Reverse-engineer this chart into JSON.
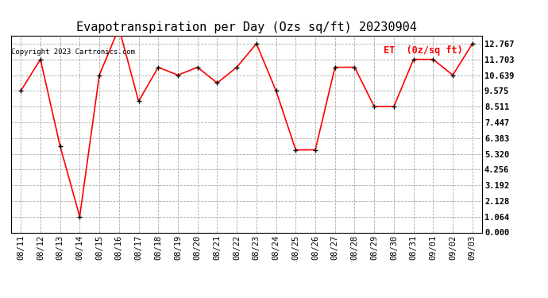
{
  "title": "Evapotranspiration per Day (Ozs sq/ft) 20230904",
  "copyright_text": "Copyright 2023 Cartronics.com",
  "legend_label": "ET  (0z/sq ft)",
  "dates": [
    "08/11",
    "08/12",
    "08/13",
    "08/14",
    "08/15",
    "08/16",
    "08/17",
    "08/18",
    "08/19",
    "08/20",
    "08/21",
    "08/22",
    "08/23",
    "08/24",
    "08/25",
    "08/26",
    "08/27",
    "08/28",
    "08/29",
    "08/30",
    "08/31",
    "09/01",
    "09/02",
    "09/03"
  ],
  "values": [
    9.575,
    11.703,
    5.852,
    1.064,
    10.639,
    13.831,
    8.872,
    11.171,
    10.639,
    11.171,
    10.107,
    11.171,
    12.767,
    9.575,
    5.585,
    5.585,
    11.171,
    11.171,
    8.511,
    8.511,
    11.703,
    11.703,
    10.639,
    12.767
  ],
  "y_ticks": [
    0.0,
    1.064,
    2.128,
    3.192,
    4.256,
    5.32,
    6.383,
    7.447,
    8.511,
    9.575,
    10.639,
    11.703,
    12.767
  ],
  "ylim": [
    0.0,
    13.3
  ],
  "line_color": "red",
  "marker_color": "black",
  "bg_color": "white",
  "grid_color": "#aaaaaa",
  "title_fontsize": 11,
  "tick_fontsize": 7.5,
  "copyright_fontsize": 6.5,
  "legend_fontsize": 8.5
}
